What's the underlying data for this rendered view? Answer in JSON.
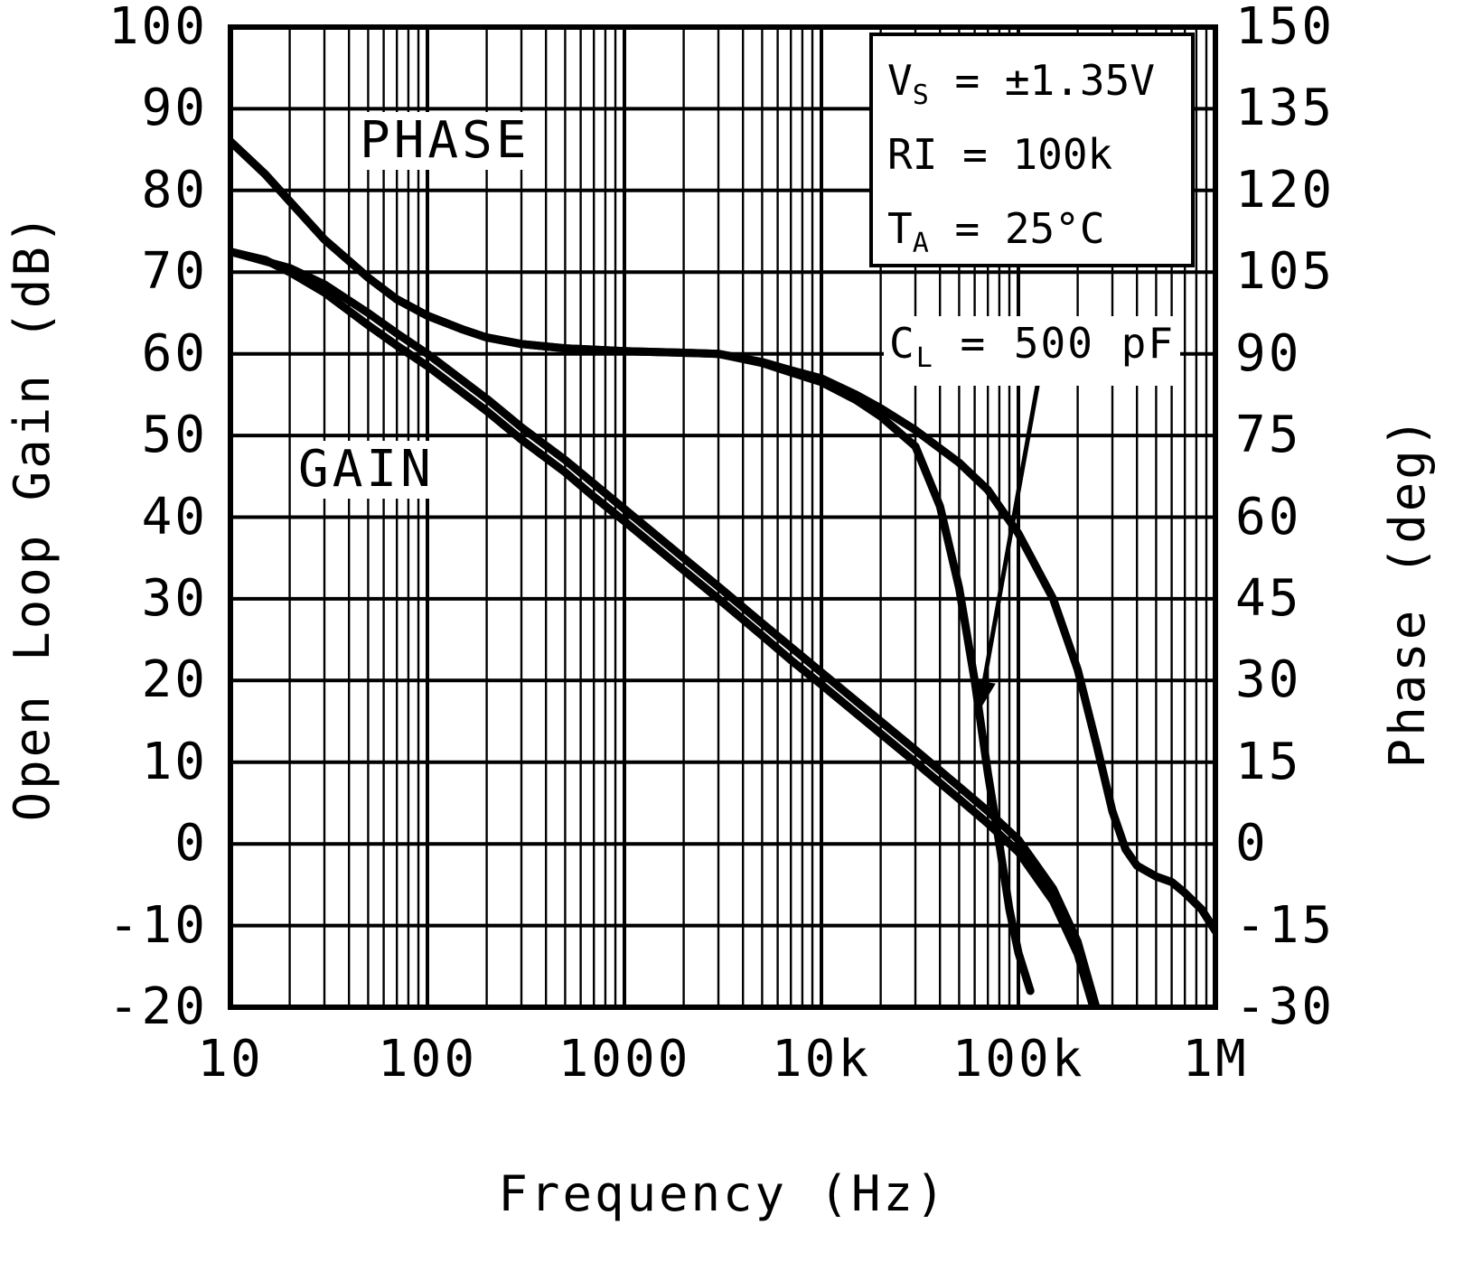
{
  "colors": {
    "foreground": "#000000",
    "background": "#ffffff"
  },
  "chart_data": {
    "type": "line",
    "title": "",
    "grid": true,
    "legend": "none",
    "x_axis": {
      "label": "Frequency (Hz)",
      "scale": "log",
      "min": 10,
      "max": 1000000,
      "tick_values": [
        10,
        100,
        1000,
        10000,
        100000,
        1000000
      ],
      "tick_labels": [
        "10",
        "100",
        "1000",
        "10k",
        "100k",
        "1M"
      ]
    },
    "y_left": {
      "label": "Open Loop Gain (dB)",
      "min": -20,
      "max": 100,
      "step": 10,
      "ticks": [
        100,
        90,
        80,
        70,
        60,
        50,
        40,
        30,
        20,
        10,
        0,
        -10,
        -20
      ]
    },
    "y_right": {
      "label": "Phase (deg)",
      "min": -30,
      "max": 150,
      "step": 15,
      "ticks": [
        150,
        135,
        120,
        105,
        90,
        75,
        60,
        45,
        30,
        15,
        0,
        -15,
        -30
      ]
    },
    "curve_labels": {
      "phase": "PHASE",
      "gain": "GAIN"
    },
    "conditions": [
      {
        "base": "V",
        "sub": "S",
        "rest": " = ±1.35V"
      },
      {
        "base": "RI",
        "sub": "",
        "rest": " = 100k"
      },
      {
        "base": "T",
        "sub": "A",
        "rest": " = 25°C"
      }
    ],
    "cl_annotation": {
      "base": "C",
      "sub": "L",
      "rest": " = 500 pF"
    },
    "series": [
      {
        "name": "phase",
        "axis": "right",
        "unit": "deg",
        "points": [
          [
            10,
            129
          ],
          [
            15,
            123
          ],
          [
            20,
            118
          ],
          [
            30,
            111
          ],
          [
            50,
            104
          ],
          [
            70,
            100
          ],
          [
            100,
            97
          ],
          [
            150,
            94.5
          ],
          [
            200,
            93
          ],
          [
            300,
            91.8
          ],
          [
            500,
            91
          ],
          [
            1000,
            90.5
          ],
          [
            2000,
            90.2
          ],
          [
            3000,
            90
          ],
          [
            5000,
            88.5
          ],
          [
            7000,
            87
          ],
          [
            10000,
            85.5
          ],
          [
            15000,
            82.5
          ],
          [
            20000,
            80
          ],
          [
            30000,
            76
          ],
          [
            50000,
            70
          ],
          [
            70000,
            65
          ],
          [
            100000,
            57
          ],
          [
            150000,
            45
          ],
          [
            200000,
            32
          ],
          [
            250000,
            18
          ],
          [
            300000,
            6
          ],
          [
            350000,
            -1
          ],
          [
            400000,
            -4
          ],
          [
            500000,
            -6
          ],
          [
            600000,
            -7
          ],
          [
            700000,
            -9
          ],
          [
            850000,
            -12
          ],
          [
            1000000,
            -16
          ]
        ]
      },
      {
        "name": "phase_cl_500pF",
        "axis": "right",
        "unit": "deg",
        "points": [
          [
            10,
            129
          ],
          [
            15,
            123
          ],
          [
            20,
            118
          ],
          [
            30,
            111
          ],
          [
            50,
            104
          ],
          [
            70,
            100
          ],
          [
            100,
            97
          ],
          [
            150,
            94.5
          ],
          [
            200,
            93
          ],
          [
            300,
            91.8
          ],
          [
            500,
            91
          ],
          [
            1000,
            90.5
          ],
          [
            2000,
            90.2
          ],
          [
            3000,
            90
          ],
          [
            5000,
            88.3
          ],
          [
            7000,
            86.6
          ],
          [
            10000,
            84.8
          ],
          [
            15000,
            81.5
          ],
          [
            20000,
            78.5
          ],
          [
            30000,
            73
          ],
          [
            40000,
            62
          ],
          [
            50000,
            47
          ],
          [
            60000,
            30
          ],
          [
            70000,
            13
          ],
          [
            80000,
            0
          ],
          [
            90000,
            -12
          ],
          [
            100000,
            -20
          ],
          [
            115000,
            -27
          ]
        ]
      },
      {
        "name": "gain",
        "axis": "left",
        "unit": "dB",
        "points": [
          [
            10,
            72.5
          ],
          [
            15,
            71.5
          ],
          [
            20,
            70
          ],
          [
            30,
            67.5
          ],
          [
            50,
            63.5
          ],
          [
            70,
            61
          ],
          [
            100,
            58.5
          ],
          [
            200,
            53
          ],
          [
            300,
            49.5
          ],
          [
            500,
            45.5
          ],
          [
            700,
            42.5
          ],
          [
            1000,
            39.5
          ],
          [
            2000,
            33.5
          ],
          [
            3000,
            30
          ],
          [
            5000,
            25.5
          ],
          [
            7000,
            22.5
          ],
          [
            10000,
            19.5
          ],
          [
            20000,
            13.5
          ],
          [
            30000,
            10
          ],
          [
            50000,
            5.5
          ],
          [
            70000,
            2.5
          ],
          [
            100000,
            -1
          ],
          [
            150000,
            -7
          ],
          [
            200000,
            -13.5
          ],
          [
            240000,
            -20
          ]
        ]
      },
      {
        "name": "gain_cl_500pF",
        "axis": "left",
        "unit": "dB",
        "points": [
          [
            10,
            72.5
          ],
          [
            20,
            70.5
          ],
          [
            30,
            68.5
          ],
          [
            50,
            65
          ],
          [
            70,
            62.5
          ],
          [
            100,
            60
          ],
          [
            200,
            54.5
          ],
          [
            300,
            51
          ],
          [
            500,
            47
          ],
          [
            1000,
            41
          ],
          [
            2000,
            35
          ],
          [
            3000,
            31.5
          ],
          [
            5000,
            27
          ],
          [
            10000,
            21
          ],
          [
            20000,
            15
          ],
          [
            30000,
            11.5
          ],
          [
            50000,
            7
          ],
          [
            70000,
            4
          ],
          [
            100000,
            0.5
          ],
          [
            150000,
            -5.5
          ],
          [
            200000,
            -12
          ],
          [
            255000,
            -21
          ]
        ]
      }
    ]
  }
}
